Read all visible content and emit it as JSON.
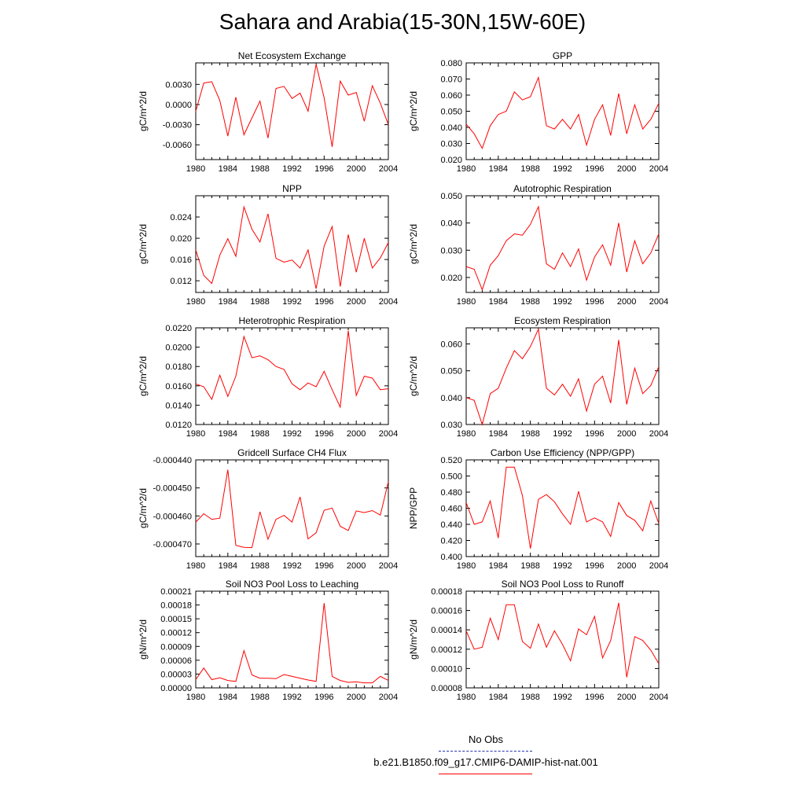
{
  "page": {
    "title": "Sahara and Arabia(15-30N,15W-60E)"
  },
  "legend": {
    "obs_label": "No Obs",
    "model_label": "b.e21.B1850.f09_g17.CMIP6-DAMIP-hist-nat.001",
    "obs_color": "#2233aa",
    "model_color": "#ff0000"
  },
  "chart_data": [
    {
      "type": "line",
      "title": "Net Ecosystem Exchange",
      "ylabel": "gC/m^2/d",
      "xlim": [
        1980,
        2004
      ],
      "ylim": [
        -0.0082,
        0.0062
      ],
      "xticks": [
        "1980",
        "1984",
        "1988",
        "1992",
        "1996",
        "2000",
        "2004"
      ],
      "yticks": [
        "-0.0060",
        "-0.0030",
        "0.0000",
        "0.0030"
      ],
      "series": [
        {
          "x": [
            1980,
            1981,
            1982,
            1983,
            1984,
            1985,
            1986,
            1987,
            1988,
            1989,
            1990,
            1991,
            1992,
            1993,
            1994,
            1995,
            1996,
            1997,
            1998,
            1999,
            2000,
            2001,
            2002,
            2003,
            2004
          ],
          "values": [
            -0.001,
            0.0032,
            0.0034,
            0.0006,
            -0.0047,
            0.0011,
            -0.0045,
            -0.002,
            0.0005,
            -0.005,
            0.0024,
            0.0027,
            0.0009,
            0.0017,
            -0.001,
            0.006,
            0.001,
            -0.0063,
            0.0035,
            0.0014,
            0.0018,
            -0.0025,
            0.0028,
            0.0002,
            -0.003
          ]
        }
      ]
    },
    {
      "type": "line",
      "title": "GPP",
      "ylabel": "gC/m^2/d",
      "xlim": [
        1980,
        2004
      ],
      "ylim": [
        0.02,
        0.08
      ],
      "xticks": [
        "1980",
        "1984",
        "1988",
        "1992",
        "1996",
        "2000",
        "2004"
      ],
      "yticks": [
        "0.020",
        "0.030",
        "0.040",
        "0.050",
        "0.060",
        "0.070",
        "0.080"
      ],
      "series": [
        {
          "x": [
            1980,
            1981,
            1982,
            1983,
            1984,
            1985,
            1986,
            1987,
            1988,
            1989,
            1990,
            1991,
            1992,
            1993,
            1994,
            1995,
            1996,
            1997,
            1998,
            1999,
            2000,
            2001,
            2002,
            2003,
            2004
          ],
          "values": [
            0.042,
            0.036,
            0.027,
            0.041,
            0.048,
            0.05,
            0.062,
            0.057,
            0.059,
            0.071,
            0.041,
            0.039,
            0.045,
            0.039,
            0.048,
            0.029,
            0.045,
            0.054,
            0.035,
            0.061,
            0.036,
            0.054,
            0.039,
            0.045,
            0.055
          ]
        }
      ]
    },
    {
      "type": "line",
      "title": "NPP",
      "ylabel": "gC/m^2/d",
      "xlim": [
        1980,
        2004
      ],
      "ylim": [
        0.0098,
        0.028
      ],
      "xticks": [
        "1980",
        "1984",
        "1988",
        "1992",
        "1996",
        "2000",
        "2004"
      ],
      "yticks": [
        "0.012",
        "0.016",
        "0.020",
        "0.024"
      ],
      "series": [
        {
          "x": [
            1980,
            1981,
            1982,
            1983,
            1984,
            1985,
            1986,
            1987,
            1988,
            1989,
            1990,
            1991,
            1992,
            1993,
            1994,
            1995,
            1996,
            1997,
            1998,
            1999,
            2000,
            2001,
            2002,
            2003,
            2004
          ],
          "values": [
            0.0178,
            0.013,
            0.0115,
            0.0168,
            0.0199,
            0.0166,
            0.0259,
            0.0217,
            0.0193,
            0.0246,
            0.0162,
            0.0155,
            0.0159,
            0.0144,
            0.0178,
            0.0105,
            0.0185,
            0.0222,
            0.0109,
            0.0207,
            0.0136,
            0.02,
            0.0144,
            0.0163,
            0.0192
          ]
        }
      ]
    },
    {
      "type": "line",
      "title": "Autotrophic Respiration",
      "ylabel": "gC/m^2/d",
      "xlim": [
        1980,
        2004
      ],
      "ylim": [
        0.0145,
        0.05
      ],
      "xticks": [
        "1980",
        "1984",
        "1988",
        "1992",
        "1996",
        "2000",
        "2004"
      ],
      "yticks": [
        "0.020",
        "0.030",
        "0.040",
        "0.050"
      ],
      "series": [
        {
          "x": [
            1980,
            1981,
            1982,
            1983,
            1984,
            1985,
            1986,
            1987,
            1988,
            1989,
            1990,
            1991,
            1992,
            1993,
            1994,
            1995,
            1996,
            1997,
            1998,
            1999,
            2000,
            2001,
            2002,
            2003,
            2004
          ],
          "values": [
            0.024,
            0.023,
            0.0155,
            0.0245,
            0.028,
            0.0335,
            0.036,
            0.0355,
            0.0395,
            0.046,
            0.025,
            0.023,
            0.029,
            0.024,
            0.0305,
            0.019,
            0.0275,
            0.032,
            0.0245,
            0.04,
            0.022,
            0.0335,
            0.025,
            0.029,
            0.036
          ]
        }
      ]
    },
    {
      "type": "line",
      "title": "Heterotrophic Respiration",
      "ylabel": "gC/m^2/d",
      "xlim": [
        1980,
        2004
      ],
      "ylim": [
        0.012,
        0.022
      ],
      "xticks": [
        "1980",
        "1984",
        "1988",
        "1992",
        "1996",
        "2000",
        "2004"
      ],
      "yticks": [
        "0.0120",
        "0.0140",
        "0.0160",
        "0.0180",
        "0.0200",
        "0.0220"
      ],
      "series": [
        {
          "x": [
            1980,
            1981,
            1982,
            1983,
            1984,
            1985,
            1986,
            1987,
            1988,
            1989,
            1990,
            1991,
            1992,
            1993,
            1994,
            1995,
            1996,
            1997,
            1998,
            1999,
            2000,
            2001,
            2002,
            2003,
            2004
          ],
          "values": [
            0.0162,
            0.0159,
            0.0146,
            0.0171,
            0.0149,
            0.017,
            0.0211,
            0.0189,
            0.0191,
            0.0187,
            0.018,
            0.0177,
            0.0162,
            0.0156,
            0.0163,
            0.0159,
            0.0175,
            0.0156,
            0.0138,
            0.0217,
            0.015,
            0.017,
            0.0168,
            0.0156,
            0.0157
          ]
        }
      ]
    },
    {
      "type": "line",
      "title": "Ecosystem Respiration",
      "ylabel": "gC/m^2/d",
      "xlim": [
        1980,
        2004
      ],
      "ylim": [
        0.03,
        0.066
      ],
      "xticks": [
        "1980",
        "1984",
        "1988",
        "1992",
        "1996",
        "2000",
        "2004"
      ],
      "yticks": [
        "0.030",
        "0.040",
        "0.050",
        "0.060"
      ],
      "series": [
        {
          "x": [
            1980,
            1981,
            1982,
            1983,
            1984,
            1985,
            1986,
            1987,
            1988,
            1989,
            1990,
            1991,
            1992,
            1993,
            1994,
            1995,
            1996,
            1997,
            1998,
            1999,
            2000,
            2001,
            2002,
            2003,
            2004
          ],
          "values": [
            0.04,
            0.039,
            0.03,
            0.0415,
            0.0435,
            0.051,
            0.0575,
            0.0545,
            0.059,
            0.0655,
            0.0435,
            0.041,
            0.045,
            0.0405,
            0.047,
            0.035,
            0.045,
            0.048,
            0.038,
            0.0615,
            0.0375,
            0.051,
            0.0415,
            0.0445,
            0.0515
          ]
        }
      ]
    },
    {
      "type": "line",
      "title": "Gridcell Surface CH4 Flux",
      "ylabel": "gC/m^2/d",
      "xlim": [
        1980,
        2004
      ],
      "ylim": [
        -0.0004745,
        -0.00044
      ],
      "xticks": [
        "1980",
        "1984",
        "1988",
        "1992",
        "1996",
        "2000",
        "2004"
      ],
      "yticks": [
        "-0.000470",
        "-0.000460",
        "-0.000450",
        "-0.000440"
      ],
      "series": [
        {
          "x": [
            1980,
            1981,
            1982,
            1983,
            1984,
            1985,
            1986,
            1987,
            1988,
            1989,
            1990,
            1991,
            1992,
            1993,
            1994,
            1995,
            1996,
            1997,
            1998,
            1999,
            2000,
            2001,
            2002,
            2003,
            2004
          ],
          "values": [
            -0.0004622,
            -0.0004592,
            -0.0004612,
            -0.0004608,
            -0.0004435,
            -0.0004705,
            -0.0004712,
            -0.0004713,
            -0.0004585,
            -0.0004683,
            -0.0004612,
            -0.0004598,
            -0.0004622,
            -0.0004532,
            -0.0004682,
            -0.000466,
            -0.000458,
            -0.0004572,
            -0.0004637,
            -0.0004652,
            -0.0004582,
            -0.0004588,
            -0.0004581,
            -0.0004597,
            -0.0004478
          ]
        }
      ]
    },
    {
      "type": "line",
      "title": "Carbon Use Efficiency (NPP/GPP)",
      "ylabel": "NPP/GPP",
      "xlim": [
        1980,
        2004
      ],
      "ylim": [
        0.4,
        0.52
      ],
      "xticks": [
        "1980",
        "1984",
        "1988",
        "1992",
        "1996",
        "2000",
        "2004"
      ],
      "yticks": [
        "0.400",
        "0.420",
        "0.440",
        "0.460",
        "0.480",
        "0.500",
        "0.520"
      ],
      "series": [
        {
          "x": [
            1980,
            1981,
            1982,
            1983,
            1984,
            1985,
            1986,
            1987,
            1988,
            1989,
            1990,
            1991,
            1992,
            1993,
            1994,
            1995,
            1996,
            1997,
            1998,
            1999,
            2000,
            2001,
            2002,
            2003,
            2004
          ],
          "values": [
            0.467,
            0.44,
            0.443,
            0.469,
            0.423,
            0.511,
            0.511,
            0.476,
            0.41,
            0.471,
            0.477,
            0.468,
            0.453,
            0.44,
            0.481,
            0.443,
            0.448,
            0.443,
            0.425,
            0.467,
            0.451,
            0.445,
            0.432,
            0.469,
            0.441
          ]
        }
      ]
    },
    {
      "type": "line",
      "title": "Soil NO3 Pool Loss to Leaching",
      "ylabel": "gN/m^2/d",
      "xlim": [
        1980,
        2004
      ],
      "ylim": [
        0.0,
        0.00021
      ],
      "xticks": [
        "1980",
        "1984",
        "1988",
        "1992",
        "1996",
        "2000",
        "2004"
      ],
      "yticks": [
        "0.00000",
        "0.00003",
        "0.00006",
        "0.00009",
        "0.00012",
        "0.00015",
        "0.00018",
        "0.00021"
      ],
      "series": [
        {
          "x": [
            1980,
            1981,
            1982,
            1983,
            1984,
            1985,
            1986,
            1987,
            1988,
            1989,
            1990,
            1991,
            1992,
            1993,
            1994,
            1995,
            1996,
            1997,
            1998,
            1999,
            2000,
            2001,
            2002,
            2003,
            2004
          ],
          "values": [
            1.8e-05,
            4.3e-05,
            1.8e-05,
            2.2e-05,
            1.6e-05,
            1.4e-05,
            8.1e-05,
            2.8e-05,
            2.1e-05,
            2.1e-05,
            2e-05,
            2.9e-05,
            2.5e-05,
            2.1e-05,
            1.7e-05,
            1.4e-05,
            0.000184,
            2.5e-05,
            1.6e-05,
            1.2e-05,
            1.3e-05,
            1.1e-05,
            1.1e-05,
            2.5e-05,
            1.6e-05
          ]
        }
      ]
    },
    {
      "type": "line",
      "title": "Soil NO3 Pool Loss to Runoff",
      "ylabel": "gN/m^2/d",
      "xlim": [
        1980,
        2004
      ],
      "ylim": [
        8e-05,
        0.00018
      ],
      "xticks": [
        "1980",
        "1984",
        "1988",
        "1992",
        "1996",
        "2000",
        "2004"
      ],
      "yticks": [
        "0.00008",
        "0.00010",
        "0.00012",
        "0.00014",
        "0.00016",
        "0.00018"
      ],
      "series": [
        {
          "x": [
            1980,
            1981,
            1982,
            1983,
            1984,
            1985,
            1986,
            1987,
            1988,
            1989,
            1990,
            1991,
            1992,
            1993,
            1994,
            1995,
            1996,
            1997,
            1998,
            1999,
            2000,
            2001,
            2002,
            2003,
            2004
          ],
          "values": [
            0.000139,
            0.00012,
            0.000122,
            0.000152,
            0.00013,
            0.000166,
            0.000166,
            0.000128,
            0.000121,
            0.000146,
            0.000122,
            0.000139,
            0.000125,
            0.000108,
            0.000141,
            0.000135,
            0.000154,
            0.000111,
            0.000129,
            0.000168,
            9.1e-05,
            0.000133,
            0.000129,
            0.000119,
            0.000105
          ]
        }
      ]
    }
  ]
}
